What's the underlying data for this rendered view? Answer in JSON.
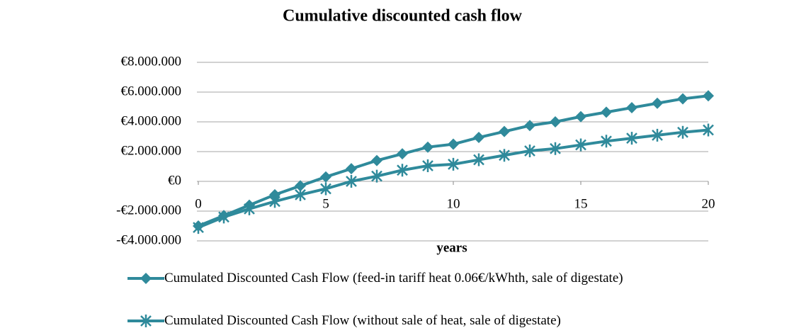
{
  "chart_data": {
    "type": "line",
    "title": "Cumulative discounted cash flow",
    "x_label": "years",
    "x": [
      0,
      1,
      2,
      3,
      4,
      5,
      6,
      7,
      8,
      9,
      10,
      11,
      12,
      13,
      14,
      15,
      16,
      17,
      18,
      19,
      20
    ],
    "xlim": [
      0,
      20
    ],
    "xticks": [
      0,
      5,
      10,
      15,
      20
    ],
    "ylim": [
      -4000000,
      8000000
    ],
    "yticks": [
      {
        "value": -4000000,
        "label": "-€4.000.000"
      },
      {
        "value": -2000000,
        "label": "-€2.000.000"
      },
      {
        "value": 0,
        "label": "€0"
      },
      {
        "value": 2000000,
        "label": "€2.000.000"
      },
      {
        "value": 4000000,
        "label": "€4.000.000"
      },
      {
        "value": 6000000,
        "label": "€6.000.000"
      },
      {
        "value": 8000000,
        "label": "€8.000.000"
      }
    ],
    "grid": true,
    "series": [
      {
        "name": "Cumulated Discounted Cash Flow (feed-in tariff heat 0.06€/kWhth, sale of digestate)",
        "color": "#2f8a9b",
        "marker": "diamond",
        "values": [
          -3000000,
          -2300000,
          -1600000,
          -900000,
          -300000,
          300000,
          850000,
          1400000,
          1850000,
          2300000,
          2500000,
          2950000,
          3350000,
          3750000,
          4000000,
          4350000,
          4650000,
          4950000,
          5250000,
          5550000,
          5750000
        ]
      },
      {
        "name": "Cumulated Discounted Cash Flow (without sale of heat, sale of digestate)",
        "color": "#2f8a9b",
        "marker": "asterisk",
        "values": [
          -3100000,
          -2400000,
          -1850000,
          -1350000,
          -900000,
          -500000,
          0,
          350000,
          750000,
          1050000,
          1150000,
          1450000,
          1750000,
          2050000,
          2200000,
          2450000,
          2700000,
          2900000,
          3100000,
          3300000,
          3450000
        ]
      }
    ]
  }
}
